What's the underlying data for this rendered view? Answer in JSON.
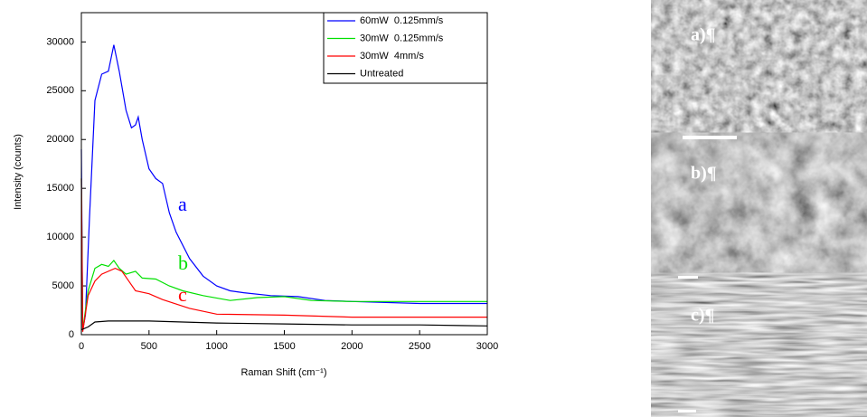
{
  "chart_data": {
    "type": "line",
    "x_label": "Raman Shift (cm⁻¹)",
    "y_label": "Intensity (counts)",
    "xlim": [
      0,
      3000
    ],
    "xticks": [
      0,
      500,
      1000,
      1500,
      2000,
      2500,
      3000
    ],
    "ylim": [
      0,
      33000
    ],
    "yticks": [
      0,
      5000,
      10000,
      15000,
      20000,
      25000,
      30000
    ],
    "legend": "upper right",
    "annotations": [
      "a",
      "b",
      "c"
    ],
    "series": [
      {
        "name": "60mW  0.125mm/s",
        "color": "#0000ff",
        "x": [
          0,
          10,
          30,
          60,
          100,
          150,
          200,
          240,
          280,
          330,
          370,
          400,
          420,
          450,
          500,
          550,
          600,
          650,
          700,
          800,
          900,
          1000,
          1100,
          1200,
          1400,
          1600,
          1800,
          2000,
          2500,
          3000
        ],
        "values": [
          19000,
          500,
          2000,
          12000,
          24000,
          26700,
          27000,
          29700,
          27000,
          23000,
          21200,
          21500,
          22300,
          20000,
          17000,
          16000,
          15500,
          12500,
          10500,
          7800,
          6000,
          5000,
          4500,
          4300,
          4000,
          3900,
          3500,
          3400,
          3200,
          3200
        ]
      },
      {
        "name": "30mW  0.125mm/s",
        "color": "#00e000",
        "x": [
          0,
          10,
          50,
          100,
          150,
          200,
          240,
          280,
          330,
          400,
          450,
          550,
          650,
          750,
          900,
          1100,
          1300,
          1500,
          1700,
          2000,
          2500,
          3000
        ],
        "values": [
          16000,
          500,
          4500,
          6800,
          7200,
          7000,
          7600,
          6800,
          6200,
          6500,
          5800,
          5700,
          5000,
          4500,
          4000,
          3500,
          3800,
          3900,
          3500,
          3400,
          3400,
          3400
        ]
      },
      {
        "name": "30mW  4mm/s",
        "color": "#ff0000",
        "x": [
          0,
          10,
          50,
          100,
          150,
          250,
          300,
          350,
          400,
          500,
          600,
          800,
          1000,
          1500,
          2000,
          3000
        ],
        "values": [
          16000,
          300,
          4000,
          5500,
          6200,
          6800,
          6500,
          5500,
          4500,
          4200,
          3600,
          2700,
          2100,
          2000,
          1800,
          1800
        ]
      },
      {
        "name": "Untreated",
        "color": "#000000",
        "x": [
          0,
          50,
          100,
          200,
          500,
          1000,
          1500,
          2000,
          2500,
          3000
        ],
        "values": [
          500,
          800,
          1300,
          1400,
          1400,
          1200,
          1100,
          1000,
          1000,
          900
        ]
      }
    ]
  },
  "images": {
    "labels": [
      "a)¶",
      "b)¶",
      "c)¶"
    ]
  }
}
